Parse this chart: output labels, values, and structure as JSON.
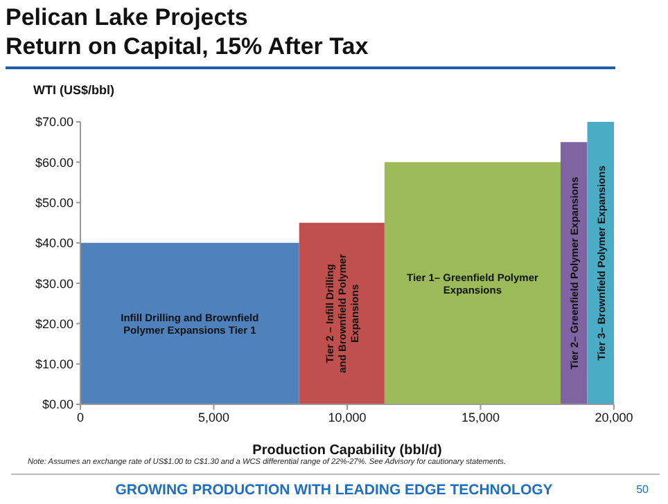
{
  "chart_data": {
    "type": "area",
    "title": "Pelican Lake Projects",
    "subtitle": "Return on Capital, 15% After Tax",
    "xlabel": "Production Capability (bbl/d)",
    "ylabel": "WTI (US$/bbl)",
    "annotations": [
      "Note: Assumes an exchange rate of US$1.00 to C$1.30 and a WCS differential range of 22%-27%. See Advisory for cautionary statements.",
      "GROWING PRODUCTION WITH LEADING EDGE TECHNOLOGY",
      "50"
    ],
    "series": [
      {
        "name": "Infill Drilling and Brownfield Polymer Expansions Tier 1",
        "color": "#4f81bd",
        "x": [
          0,
          8200
        ],
        "values": [
          40,
          40
        ]
      },
      {
        "name": "Tier 2 – Infill Drilling and Brownfield Polymer Expansions",
        "color": "#c0504d",
        "x": [
          8200,
          11400
        ],
        "values": [
          45,
          45
        ]
      },
      {
        "name": "Tier 1– Greenfield Polymer Expansions",
        "color": "#9bbb59",
        "x": [
          11400,
          18000
        ],
        "values": [
          60,
          60
        ]
      },
      {
        "name": "Tier 2– Greenfield Polymer Expansions",
        "color": "#8064a2",
        "x": [
          18000,
          19000
        ],
        "values": [
          65,
          65
        ]
      },
      {
        "name": "Tier 3– Brownfield Polymer Expansions",
        "color": "#4bacc6",
        "x": [
          19000,
          20000
        ],
        "values": [
          70,
          70
        ]
      }
    ],
    "xlim": [
      0,
      20000
    ],
    "xticks": [
      0,
      {
        "value": 5000,
        "label": "5,000"
      },
      {
        "value": 10000,
        "label": "10,000"
      },
      {
        "value": 15000,
        "label": "15,000"
      },
      {
        "value": 20000,
        "label": "20,000"
      }
    ],
    "ylim": [
      0,
      70
    ],
    "yticks": [
      {
        "value": 0,
        "label": "$0.00"
      },
      {
        "value": 10,
        "label": "$10.00"
      },
      {
        "value": 20,
        "label": "$20.00"
      },
      {
        "value": 30,
        "label": "$30.00"
      },
      {
        "value": 40,
        "label": "$40.00"
      },
      {
        "value": 50,
        "label": "$50.00"
      },
      {
        "value": 60,
        "label": "$60.00"
      },
      {
        "value": 70,
        "label": "$70.00"
      }
    ],
    "legend": false,
    "grid": false
  }
}
